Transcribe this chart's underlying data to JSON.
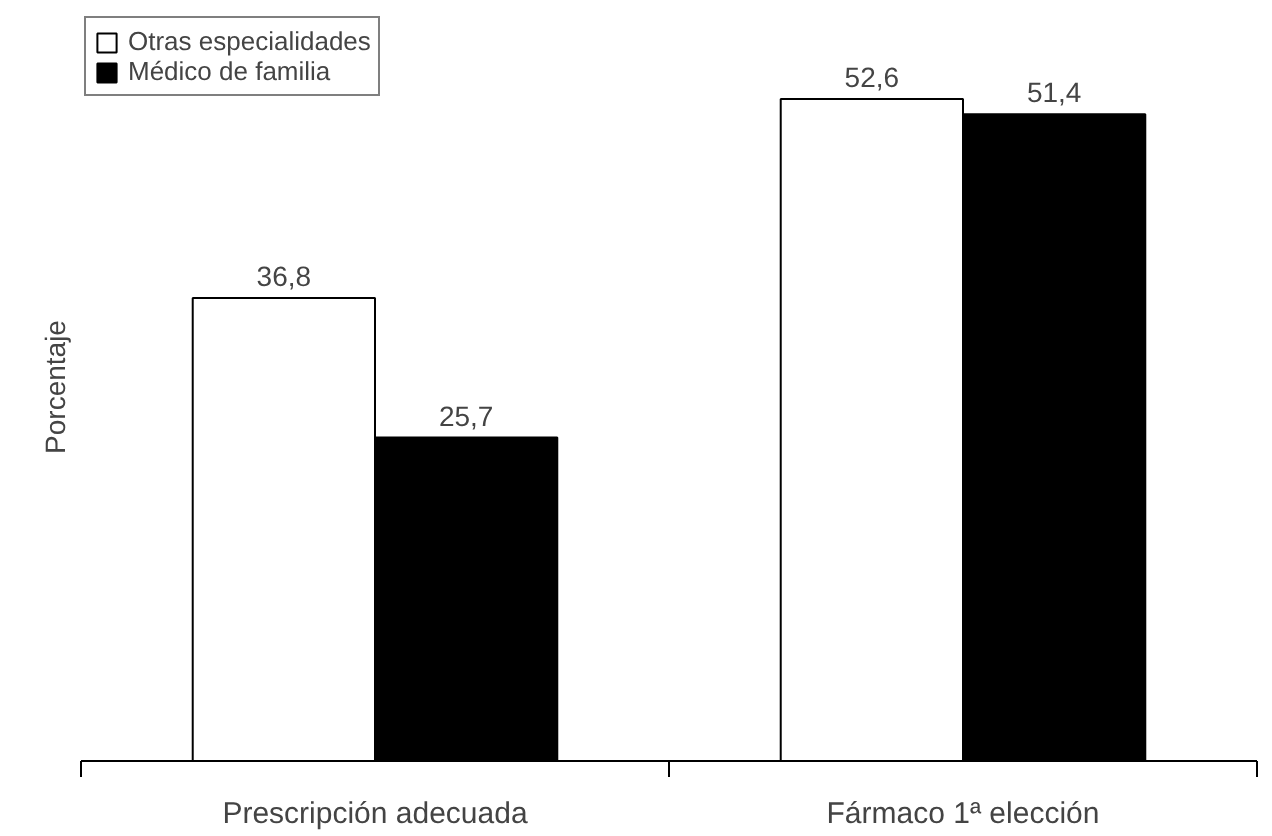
{
  "chart_data": {
    "type": "bar",
    "ylabel": "Porcentaje",
    "categories": [
      "Prescripción adecuada",
      "Fármaco 1ª elección"
    ],
    "series": [
      {
        "name": "Otras especialidades",
        "color": "#ffffff",
        "values": [
          36.8,
          52.6
        ],
        "value_labels": [
          "36,8",
          "52,6"
        ]
      },
      {
        "name": "Médico de familia",
        "color": "#000000",
        "values": [
          25.7,
          51.4
        ],
        "value_labels": [
          "25,7",
          "51,4"
        ]
      }
    ],
    "legend": "top left",
    "grid": false
  }
}
